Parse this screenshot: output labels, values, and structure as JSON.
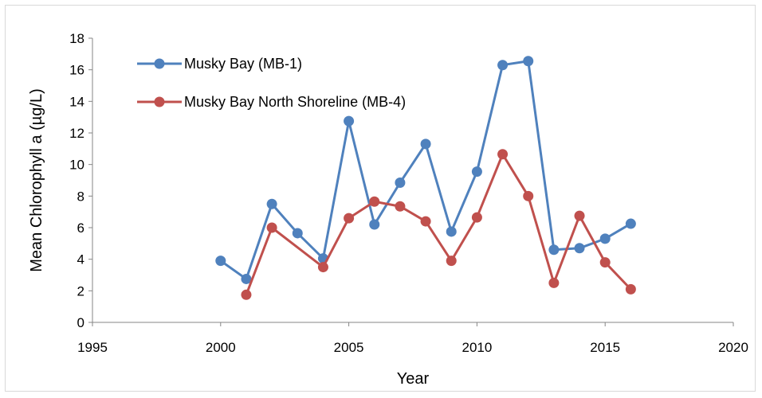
{
  "chart_data": {
    "type": "line",
    "title": "",
    "xlabel": "Year",
    "ylabel": "Mean Chlorophyll a (µg/L)",
    "xlim": [
      1995,
      2020
    ],
    "ylim": [
      0,
      18
    ],
    "xticks": [
      1995,
      2000,
      2005,
      2010,
      2015,
      2020
    ],
    "yticks": [
      0,
      2,
      4,
      6,
      8,
      10,
      12,
      14,
      16,
      18
    ],
    "grid": false,
    "legend_position": "top-left",
    "series": [
      {
        "name": "Musky Bay (MB-1)",
        "color": "#4f81bd",
        "x": [
          2000,
          2001,
          2002,
          2003,
          2004,
          2005,
          2006,
          2007,
          2008,
          2009,
          2010,
          2011,
          2012,
          2013,
          2014,
          2015,
          2016
        ],
        "y": [
          3.9,
          2.75,
          7.5,
          5.65,
          4.05,
          12.75,
          6.2,
          8.85,
          11.3,
          5.75,
          9.55,
          16.3,
          16.55,
          4.6,
          4.7,
          5.3,
          6.25
        ]
      },
      {
        "name": "Musky Bay North Shoreline (MB-4)",
        "color": "#c0504d",
        "x": [
          2001,
          2002,
          2004,
          2005,
          2006,
          2007,
          2008,
          2009,
          2010,
          2011,
          2012,
          2013,
          2014,
          2015,
          2016
        ],
        "y": [
          1.75,
          6.0,
          3.5,
          6.6,
          7.65,
          7.35,
          6.4,
          3.9,
          6.65,
          10.65,
          8.0,
          2.5,
          6.75,
          3.8,
          2.1
        ]
      }
    ]
  }
}
